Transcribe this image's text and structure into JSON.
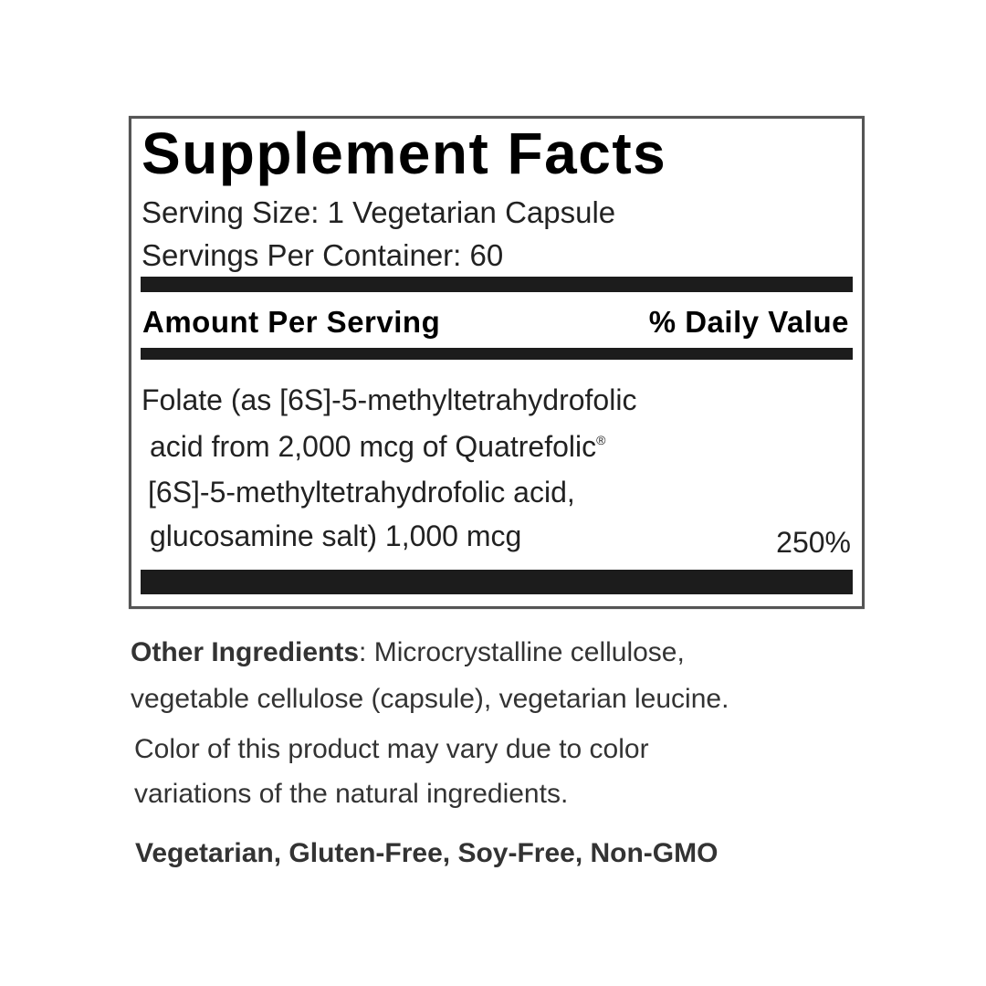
{
  "label": {
    "title": "Supplement Facts",
    "serving_size": "Serving Size: 1 Vegetarian Capsule",
    "servings_per_container": "Servings Per Container: 60",
    "amount_header": "Amount Per Serving",
    "daily_value_header": "% Daily Value",
    "ingredient_lines": [
      "Folate (as [6S]-5-methyltetrahydrofolic",
      "acid from 2,000 mcg of Quatrefolic",
      "[6S]-5-methyltetrahydrofolic acid,",
      "glucosamine salt) 1,000 mcg"
    ],
    "registered_mark": "®",
    "daily_value": "250%"
  },
  "notes": {
    "other_ingredients_label": "Other Ingredients",
    "other_ingredients_line1": ": Microcrystalline cellulose,",
    "other_ingredients_line2": "vegetable cellulose (capsule), vegetarian leucine.",
    "color_note_line1": "Color of this product may vary due to color",
    "color_note_line2": "variations of the natural ingredients.",
    "claims": "Vegetarian, Gluten-Free, Soy-Free, Non-GMO"
  }
}
